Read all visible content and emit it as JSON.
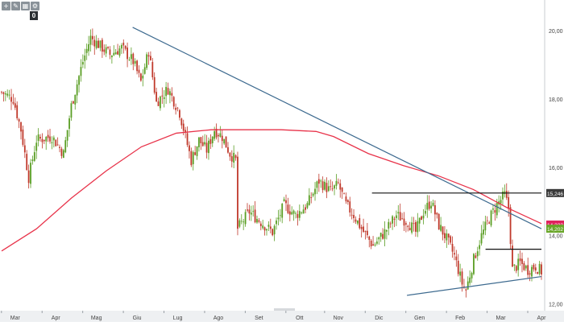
{
  "toolbar": {
    "icons": [
      "add-icon",
      "pencil-icon",
      "grid-icon",
      "settings-icon"
    ],
    "glyphs": [
      "+",
      "✎",
      "▦",
      "⚙"
    ],
    "zero_badge": "0"
  },
  "chart_data": {
    "type": "candlestick",
    "xlabels": [
      "Mar",
      "Apr",
      "Mag",
      "Giu",
      "Lug",
      "Ago",
      "Set",
      "Ott",
      "Nov",
      "Dic",
      "Gen",
      "Feb",
      "Mar",
      "Apr"
    ],
    "ylabels": [
      "20,00",
      "18,00",
      "16,00",
      "14,00",
      "12,00"
    ],
    "yticks": [
      20,
      18,
      16,
      14,
      12
    ],
    "ylim": [
      11.8,
      20.9
    ],
    "bars": 280,
    "price_tags": [
      {
        "label": "15,246",
        "value": 15.246,
        "color": "#3a3a3a"
      },
      {
        "label": "14,323",
        "value": 14.323,
        "color": "#e0245e"
      },
      {
        "label": "14,202",
        "value": 14.202,
        "color": "#69a628"
      }
    ],
    "close_path": [
      [
        0,
        18.2
      ],
      [
        6,
        18.0
      ],
      [
        10,
        17.1
      ],
      [
        14,
        15.7
      ],
      [
        18,
        16.8
      ],
      [
        26,
        16.9
      ],
      [
        32,
        16.4
      ],
      [
        36,
        17.8
      ],
      [
        42,
        19.1
      ],
      [
        46,
        19.8
      ],
      [
        50,
        19.6
      ],
      [
        56,
        19.3
      ],
      [
        62,
        19.5
      ],
      [
        68,
        19.1
      ],
      [
        72,
        18.5
      ],
      [
        76,
        19.4
      ],
      [
        80,
        17.9
      ],
      [
        86,
        18.3
      ],
      [
        92,
        17.6
      ],
      [
        98,
        16.2
      ],
      [
        102,
        16.8
      ],
      [
        106,
        16.5
      ],
      [
        110,
        17.1
      ],
      [
        114,
        16.9
      ],
      [
        118,
        16.4
      ],
      [
        121,
        16.2
      ],
      [
        122,
        14.2
      ],
      [
        128,
        14.7
      ],
      [
        134,
        14.4
      ],
      [
        140,
        14.1
      ],
      [
        146,
        14.9
      ],
      [
        152,
        14.6
      ],
      [
        158,
        14.9
      ],
      [
        164,
        15.6
      ],
      [
        170,
        15.3
      ],
      [
        174,
        15.5
      ],
      [
        178,
        14.9
      ],
      [
        182,
        14.6
      ],
      [
        186,
        14.2
      ],
      [
        192,
        13.7
      ],
      [
        198,
        14.1
      ],
      [
        204,
        14.6
      ],
      [
        210,
        14.4
      ],
      [
        214,
        14.1
      ],
      [
        218,
        14.7
      ],
      [
        222,
        15.0
      ],
      [
        226,
        14.3
      ],
      [
        230,
        13.9
      ],
      [
        234,
        13.4
      ],
      [
        238,
        12.6
      ],
      [
        240,
        12.4
      ],
      [
        244,
        13.3
      ],
      [
        248,
        14.0
      ],
      [
        252,
        14.5
      ],
      [
        256,
        14.9
      ],
      [
        260,
        15.2
      ],
      [
        262,
        14.8
      ],
      [
        264,
        13.0
      ],
      [
        268,
        13.2
      ],
      [
        272,
        13.0
      ],
      [
        276,
        13.1
      ],
      [
        280,
        12.9
      ],
      [
        284,
        12.8
      ],
      [
        288,
        13.0
      ],
      [
        292,
        13.3
      ],
      [
        296,
        13.6
      ],
      [
        300,
        13.9
      ],
      [
        304,
        14.1
      ],
      [
        309,
        14.3
      ]
    ],
    "moving_average": {
      "color": "#e8334a",
      "points": [
        [
          0,
          13.55
        ],
        [
          20,
          14.2
        ],
        [
          40,
          15.1
        ],
        [
          60,
          15.9
        ],
        [
          80,
          16.6
        ],
        [
          100,
          17.0
        ],
        [
          120,
          17.1
        ],
        [
          140,
          17.1
        ],
        [
          160,
          17.1
        ],
        [
          180,
          17.05
        ],
        [
          190,
          16.9
        ],
        [
          210,
          16.4
        ],
        [
          230,
          16.05
        ],
        [
          250,
          15.75
        ],
        [
          270,
          15.35
        ],
        [
          290,
          14.8
        ],
        [
          309,
          14.35
        ]
      ]
    },
    "trendlines": [
      {
        "from": [
          75,
          20.1
        ],
        "to": [
          309,
          14.2
        ],
        "color": "#3d6a8f"
      },
      {
        "from": [
          232,
          12.25
        ],
        "to": [
          309,
          12.8
        ],
        "color": "#3d6a8f"
      }
    ],
    "levels": [
      {
        "value": 15.246,
        "from_x": 212,
        "to_x": 309,
        "color": "#111111"
      },
      {
        "value": 13.6,
        "from_x": 277,
        "to_x": 309,
        "color": "#111111"
      }
    ]
  }
}
